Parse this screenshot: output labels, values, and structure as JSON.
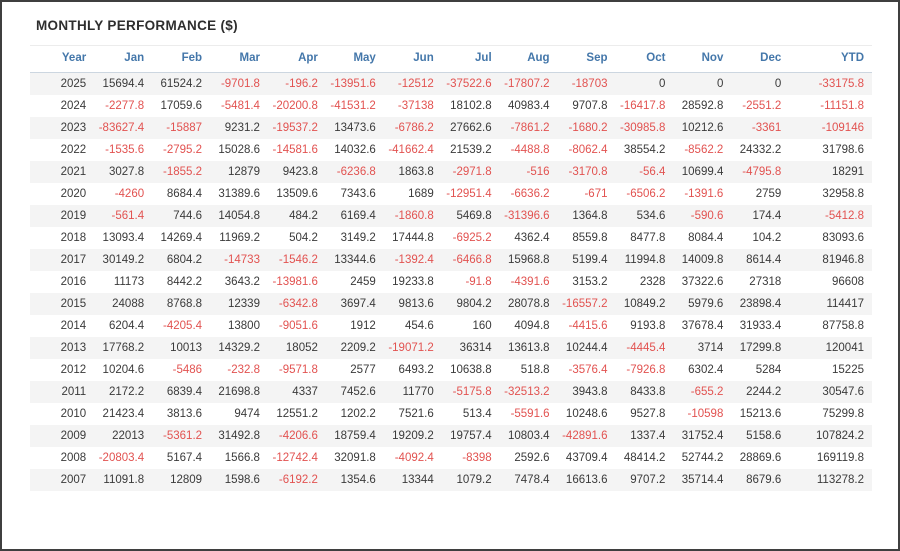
{
  "title": "MONTHLY PERFORMANCE ($)",
  "colors": {
    "header_text": "#4477aa",
    "negative_value": "#e25250",
    "positive_value": "#3a3a3a",
    "stripe_row": "#f4f4f4",
    "frame_border": "#3f3f3f"
  },
  "table": {
    "columns": [
      "Year",
      "Jan",
      "Feb",
      "Mar",
      "Apr",
      "May",
      "Jun",
      "Jul",
      "Aug",
      "Sep",
      "Oct",
      "Nov",
      "Dec",
      "YTD"
    ],
    "rows": [
      [
        "2025",
        15694.4,
        61524.2,
        -9701.8,
        -196.2,
        -13951.6,
        -12512,
        -37522.6,
        -17807.2,
        -18703,
        0,
        0,
        0,
        -33175.8
      ],
      [
        "2024",
        -2277.8,
        17059.6,
        -5481.4,
        -20200.8,
        -41531.2,
        -37138,
        18102.8,
        40983.4,
        9707.8,
        -16417.8,
        28592.8,
        -2551.2,
        -11151.8
      ],
      [
        "2023",
        -83627.4,
        -15887,
        9231.2,
        -19537.2,
        13473.6,
        -6786.2,
        27662.6,
        -7861.2,
        -1680.2,
        -30985.8,
        10212.6,
        -3361,
        -109146
      ],
      [
        "2022",
        -1535.6,
        -2795.2,
        15028.6,
        -14581.6,
        14032.6,
        -41662.4,
        21539.2,
        -4488.8,
        -8062.4,
        38554.2,
        -8562.2,
        24332.2,
        31798.6
      ],
      [
        "2021",
        3027.8,
        -1855.2,
        12879,
        9423.8,
        -6236.8,
        1863.8,
        -2971.8,
        -516,
        -3170.8,
        -56.4,
        10699.4,
        -4795.8,
        18291
      ],
      [
        "2020",
        -4260,
        8684.4,
        31389.6,
        13509.6,
        7343.6,
        1689,
        -12951.4,
        -6636.2,
        -671,
        -6506.2,
        -1391.6,
        2759,
        32958.8
      ],
      [
        "2019",
        -561.4,
        744.6,
        14054.8,
        484.2,
        6169.4,
        -1860.8,
        5469.8,
        -31396.6,
        1364.8,
        534.6,
        -590.6,
        174.4,
        -5412.8
      ],
      [
        "2018",
        13093.4,
        14269.4,
        11969.2,
        504.2,
        3149.2,
        17444.8,
        -6925.2,
        4362.4,
        8559.8,
        8477.8,
        8084.4,
        104.2,
        83093.6
      ],
      [
        "2017",
        30149.2,
        6804.2,
        -14733,
        -1546.2,
        13344.6,
        -1392.4,
        -6466.8,
        15968.8,
        5199.4,
        11994.8,
        14009.8,
        8614.4,
        81946.8
      ],
      [
        "2016",
        11173,
        8442.2,
        3643.2,
        -13981.6,
        2459,
        19233.8,
        -91.8,
        -4391.6,
        3153.2,
        2328,
        37322.6,
        27318,
        96608
      ],
      [
        "2015",
        24088,
        8768.8,
        12339,
        -6342.8,
        3697.4,
        9813.6,
        9804.2,
        28078.8,
        -16557.2,
        10849.2,
        5979.6,
        23898.4,
        114417
      ],
      [
        "2014",
        6204.4,
        -4205.4,
        13800,
        -9051.6,
        1912,
        454.6,
        160,
        4094.8,
        -4415.6,
        9193.8,
        37678.4,
        31933.4,
        87758.8
      ],
      [
        "2013",
        17768.2,
        10013,
        14329.2,
        18052,
        2209.2,
        -19071.2,
        36314,
        13613.8,
        10244.4,
        -4445.4,
        3714,
        17299.8,
        120041
      ],
      [
        "2012",
        10204.6,
        -5486,
        -232.8,
        -9571.8,
        2577,
        6493.2,
        10638.8,
        518.8,
        -3576.4,
        -7926.8,
        6302.4,
        5284,
        15225
      ],
      [
        "2011",
        2172.2,
        6839.4,
        21698.8,
        4337,
        7452.6,
        11770,
        -5175.8,
        -32513.2,
        3943.8,
        8433.8,
        -655.2,
        2244.2,
        30547.6
      ],
      [
        "2010",
        21423.4,
        3813.6,
        9474,
        12551.2,
        1202.2,
        7521.6,
        513.4,
        -5591.6,
        10248.6,
        9527.8,
        -10598,
        15213.6,
        75299.8
      ],
      [
        "2009",
        22013,
        -5361.2,
        31492.8,
        -4206.6,
        18759.4,
        19209.2,
        19757.4,
        10803.4,
        -42891.6,
        1337.4,
        31752.4,
        5158.6,
        107824.2
      ],
      [
        "2008",
        -20803.4,
        5167.4,
        1566.8,
        -12742.4,
        32091.8,
        -4092.4,
        -8398,
        2592.6,
        43709.4,
        48414.2,
        52744.2,
        28869.6,
        169119.8
      ],
      [
        "2007",
        11091.8,
        12809,
        1598.6,
        -6192.2,
        1354.6,
        13344,
        1079.2,
        7478.4,
        16613.6,
        9707.2,
        35714.4,
        8679.6,
        113278.2
      ]
    ]
  }
}
